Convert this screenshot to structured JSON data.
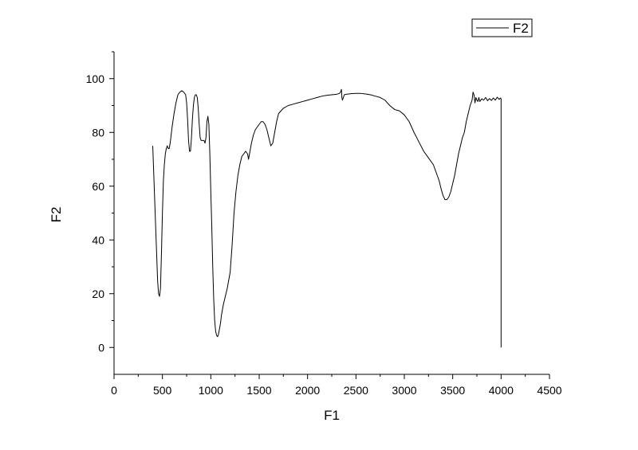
{
  "chart_data": {
    "type": "line",
    "xlabel": "F1",
    "ylabel": "F2",
    "xlim": [
      0,
      4500
    ],
    "ylim": [
      -10,
      110
    ],
    "x_ticks": [
      0,
      500,
      1000,
      1500,
      2000,
      2500,
      3000,
      3500,
      4000,
      4500
    ],
    "y_ticks": [
      0,
      20,
      40,
      60,
      80,
      100
    ],
    "x_minor_step": 250,
    "y_minor_step": 10,
    "legend": {
      "position": "top-right",
      "entries": [
        "F2"
      ]
    },
    "grid": false,
    "series": [
      {
        "name": "F2",
        "color": "#000000",
        "x": [
          400,
          410,
          420,
          430,
          440,
          450,
          460,
          470,
          480,
          490,
          500,
          510,
          520,
          530,
          540,
          550,
          560,
          570,
          580,
          590,
          600,
          620,
          640,
          660,
          680,
          700,
          720,
          740,
          750,
          760,
          770,
          780,
          790,
          800,
          810,
          820,
          830,
          840,
          850,
          860,
          870,
          880,
          890,
          900,
          910,
          920,
          930,
          940,
          950,
          960,
          970,
          980,
          990,
          995,
          1000,
          1010,
          1020,
          1030,
          1040,
          1050,
          1060,
          1070,
          1080,
          1090,
          1100,
          1110,
          1120,
          1130,
          1150,
          1170,
          1200,
          1220,
          1240,
          1260,
          1280,
          1300,
          1320,
          1340,
          1360,
          1380,
          1390,
          1400,
          1420,
          1440,
          1460,
          1480,
          1500,
          1520,
          1540,
          1560,
          1580,
          1600,
          1620,
          1640,
          1660,
          1680,
          1700,
          1750,
          1800,
          1850,
          1900,
          1950,
          2000,
          2050,
          2100,
          2150,
          2200,
          2250,
          2300,
          2330,
          2340,
          2350,
          2355,
          2360,
          2370,
          2380,
          2400,
          2450,
          2500,
          2550,
          2600,
          2650,
          2700,
          2750,
          2800,
          2850,
          2900,
          2950,
          3000,
          3050,
          3100,
          3150,
          3200,
          3250,
          3300,
          3330,
          3360,
          3380,
          3400,
          3420,
          3440,
          3460,
          3480,
          3500,
          3520,
          3540,
          3560,
          3580,
          3600,
          3620,
          3640,
          3660,
          3680,
          3700,
          3710,
          3720,
          3730,
          3740,
          3750,
          3760,
          3770,
          3780,
          3800,
          3820,
          3840,
          3860,
          3880,
          3900,
          3920,
          3940,
          3960,
          3980,
          3995,
          4000,
          4000
        ],
        "y": [
          75,
          65,
          55,
          45,
          35,
          25,
          20,
          19,
          22,
          35,
          50,
          62,
          68,
          72,
          74,
          75,
          74,
          74,
          76,
          79,
          82,
          87,
          91,
          94,
          95,
          95.5,
          95,
          94,
          91,
          85,
          77,
          73,
          73,
          78,
          85,
          90,
          93,
          94,
          94,
          93,
          89,
          83,
          78,
          77,
          77,
          77,
          77,
          76,
          78,
          84,
          86,
          83,
          72,
          65,
          58,
          45,
          30,
          18,
          10,
          6,
          4.5,
          4,
          5,
          7,
          9,
          12,
          14,
          16,
          19,
          22,
          28,
          38,
          50,
          58,
          64,
          68,
          71,
          72,
          73,
          72,
          70,
          72,
          76,
          79,
          81,
          82,
          83,
          84,
          84,
          83,
          81,
          78,
          75,
          76,
          80,
          84,
          87,
          89,
          90,
          90.5,
          91,
          91.5,
          92,
          92.5,
          93,
          93.5,
          93.8,
          94,
          94.2,
          94.5,
          95,
          96,
          93,
          92,
          93,
          94,
          94.2,
          94.4,
          94.5,
          94.5,
          94.3,
          94,
          93.5,
          93,
          92,
          90,
          88.5,
          88,
          86.5,
          84,
          80,
          76.5,
          73,
          70.5,
          68,
          65,
          62,
          59,
          56.5,
          55,
          55,
          56,
          58,
          61,
          64,
          68,
          72,
          75,
          78,
          80,
          84,
          87,
          90,
          92,
          95,
          94,
          91,
          93,
          92,
          91.5,
          93,
          91.5,
          92.5,
          92,
          93,
          91.8,
          92.6,
          91.9,
          92.8,
          92,
          93.1,
          92.3,
          92.8,
          92.5,
          0
        ]
      }
    ]
  }
}
